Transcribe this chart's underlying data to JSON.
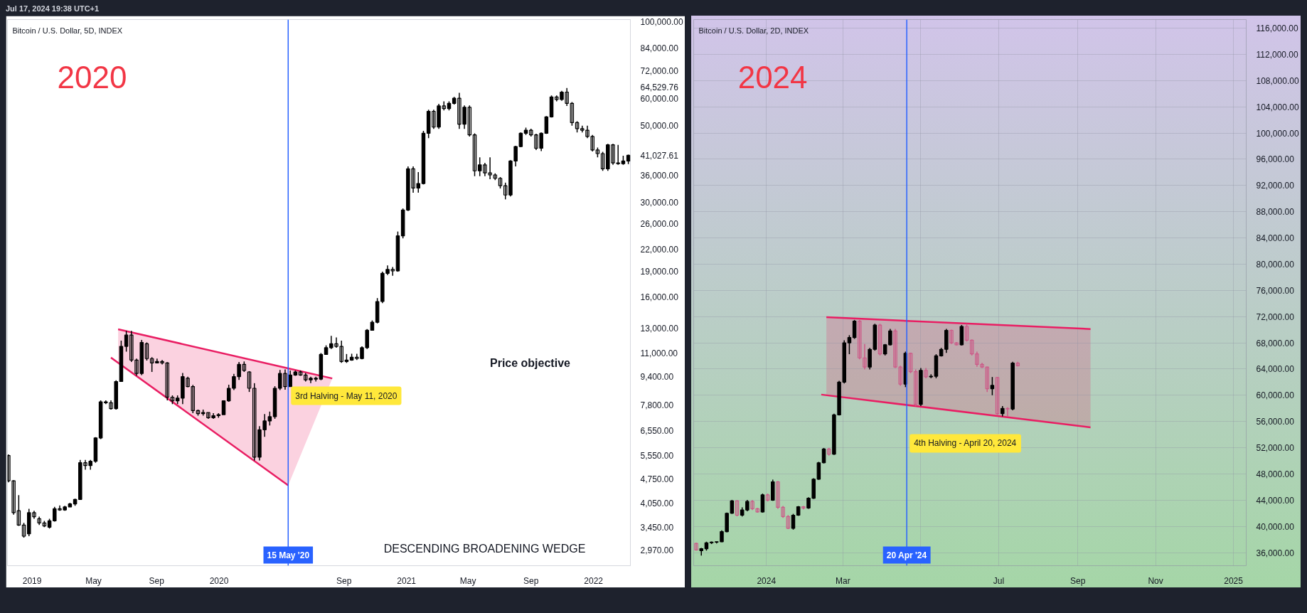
{
  "chart_data": [
    {
      "type": "candlestick",
      "title": "Bitcoin / U.S. Dollar, 5D, INDEX",
      "annotations": [
        "Jul 17, 2024 19:38 UTC+1",
        "2020",
        "Price objective",
        "DESCENDING BROADENING WEDGE",
        {
          "text": "3rd Halving - May 11, 2020",
          "x": "2020-05-15",
          "y": 8970
        }
      ],
      "log": true,
      "xlim": [
        "2018-11-14",
        "2022-03-14"
      ],
      "ylim": [
        2670,
        101300
      ],
      "xticks": [
        {
          "value": "2019-01-01",
          "label": "2019"
        },
        {
          "value": "2019-05-01",
          "label": "May"
        },
        {
          "value": "2019-09-01",
          "label": "Sep"
        },
        {
          "value": "2020-01-01",
          "label": "2020"
        },
        {
          "value": "2020-09-01",
          "label": "Sep"
        },
        {
          "value": "2021-01-01",
          "label": "2021"
        },
        {
          "value": "2021-05-01",
          "label": "May"
        },
        {
          "value": "2021-09-01",
          "label": "Sep"
        },
        {
          "value": "2022-01-01",
          "label": "2022"
        }
      ],
      "yticks": [
        {
          "value": 2970,
          "label": "2,970.00"
        },
        {
          "value": 3450,
          "label": "3,450.00"
        },
        {
          "value": 4050,
          "label": "4,050.00"
        },
        {
          "value": 4750,
          "label": "4,750.00"
        },
        {
          "value": 5550,
          "label": "5,550.00"
        },
        {
          "value": 6550,
          "label": "6,550.00"
        },
        {
          "value": 7800,
          "label": "7,800.00"
        },
        {
          "value": 9400,
          "label": "9,400.00"
        },
        {
          "value": 11000,
          "label": "11,000.00"
        },
        {
          "value": 13000,
          "label": "13,000.00"
        },
        {
          "value": 16000,
          "label": "16,000.00"
        },
        {
          "value": 19000,
          "label": "19,000.00"
        },
        {
          "value": 22000,
          "label": "22,000.00"
        },
        {
          "value": 26000,
          "label": "26,000.00"
        },
        {
          "value": 30000,
          "label": "30,000.00"
        },
        {
          "value": 36000,
          "label": "36,000.00"
        },
        {
          "value": 41027.61,
          "label": "41,027.61"
        },
        {
          "value": 50000,
          "label": "50,000.00"
        },
        {
          "value": 60000,
          "label": "60,000.00"
        },
        {
          "value": 64529.76,
          "label": "64,529.76"
        },
        {
          "value": 72000,
          "label": "72,000.00"
        },
        {
          "value": 84000,
          "label": "84,000.00"
        },
        {
          "value": 100000,
          "label": "100,000.00"
        }
      ],
      "ref_lines": [
        {
          "axis": "x",
          "value": "2020-05-15",
          "label": "15 May '20",
          "color": "#2962ff"
        }
      ],
      "series": [
        {
          "type": "line",
          "color": "#e91e63",
          "x": [
            "2019-06-04",
            "2020-05-15",
            null,
            "2019-06-18",
            "2020-05-15",
            "2020-08-09"
          ],
          "values": [
            10670,
            4560,
            null,
            12890,
            9935,
            9290
          ],
          "lower": [
            null,
            null,
            null,
            10290,
            4560,
            9290
          ],
          "upper": [
            null,
            null,
            null,
            12890,
            9935,
            9290
          ]
        }
      ],
      "color": "#000000",
      "x": [
        "2018-11-16",
        "2018-11-26",
        "2018-12-06",
        "2018-12-16",
        "2018-12-26",
        "2019-01-05",
        "2019-01-15",
        "2019-01-25",
        "2019-02-04",
        "2019-02-14",
        "2019-02-24",
        "2019-03-06",
        "2019-03-16",
        "2019-03-26",
        "2019-04-05",
        "2019-04-15",
        "2019-04-25",
        "2019-05-05",
        "2019-05-15",
        "2019-05-25",
        "2019-06-04",
        "2019-06-14",
        "2019-06-24",
        "2019-07-04",
        "2019-07-14",
        "2019-07-24",
        "2019-08-03",
        "2019-08-13",
        "2019-08-23",
        "2019-09-02",
        "2019-09-12",
        "2019-09-22",
        "2019-10-02",
        "2019-10-12",
        "2019-10-22",
        "2019-11-01",
        "2019-11-11",
        "2019-11-21",
        "2019-12-01",
        "2019-12-11",
        "2019-12-21",
        "2019-12-31",
        "2020-01-10",
        "2020-01-20",
        "2020-01-30",
        "2020-02-09",
        "2020-02-19",
        "2020-02-29",
        "2020-03-10",
        "2020-03-20",
        "2020-03-30",
        "2020-04-09",
        "2020-04-19",
        "2020-04-29",
        "2020-05-09",
        "2020-05-19",
        "2020-05-29",
        "2020-06-08",
        "2020-06-18",
        "2020-06-28",
        "2020-07-08",
        "2020-07-18",
        "2020-07-28",
        "2020-08-07",
        "2020-08-17",
        "2020-08-27",
        "2020-09-06",
        "2020-09-16",
        "2020-09-26",
        "2020-10-06",
        "2020-10-16",
        "2020-10-26",
        "2020-11-05",
        "2020-11-15",
        "2020-11-25",
        "2020-12-05",
        "2020-12-15",
        "2020-12-25",
        "2021-01-04",
        "2021-01-14",
        "2021-01-24",
        "2021-02-03",
        "2021-02-13",
        "2021-02-23",
        "2021-03-05",
        "2021-03-15",
        "2021-03-25",
        "2021-04-04",
        "2021-04-14",
        "2021-04-24",
        "2021-05-04",
        "2021-05-14",
        "2021-05-24",
        "2021-06-03",
        "2021-06-13",
        "2021-06-23",
        "2021-07-03",
        "2021-07-13",
        "2021-07-23",
        "2021-08-02",
        "2021-08-12",
        "2021-08-22",
        "2021-09-01",
        "2021-09-11",
        "2021-09-21",
        "2021-10-01",
        "2021-10-11",
        "2021-10-21",
        "2021-10-31",
        "2021-11-10",
        "2021-11-20",
        "2021-11-30",
        "2021-12-10",
        "2021-12-20",
        "2021-12-30",
        "2022-01-09",
        "2022-01-19",
        "2022-01-29",
        "2022-02-08",
        "2022-02-18",
        "2022-02-28",
        "2022-03-10"
      ],
      "ohlc": [
        [
          5560,
          5600,
          4650,
          4700
        ],
        [
          4700,
          4720,
          3750,
          3800
        ],
        [
          3850,
          4270,
          3480,
          3500
        ],
        [
          3500,
          3550,
          3220,
          3250
        ],
        [
          3300,
          3900,
          3250,
          3800
        ],
        [
          3800,
          3850,
          3650,
          3700
        ],
        [
          3650,
          3700,
          3500,
          3550
        ],
        [
          3550,
          3600,
          3450,
          3480
        ],
        [
          3450,
          3650,
          3420,
          3600
        ],
        [
          3600,
          3950,
          3580,
          3900
        ],
        [
          3900,
          3990,
          3850,
          3870
        ],
        [
          3870,
          3980,
          3850,
          3950
        ],
        [
          3950,
          4060,
          3950,
          4030
        ],
        [
          4030,
          4170,
          3980,
          4150
        ],
        [
          4150,
          5400,
          4150,
          5300
        ],
        [
          5300,
          5400,
          5060,
          5200
        ],
        [
          5200,
          5400,
          5060,
          5350
        ],
        [
          5350,
          6280,
          5300,
          6250
        ],
        [
          6250,
          8030,
          6200,
          7950
        ],
        [
          7950,
          8030,
          7830,
          7900
        ],
        [
          7900,
          8030,
          7550,
          7600
        ],
        [
          7600,
          9180,
          7550,
          9100
        ],
        [
          9100,
          11950,
          9100,
          11500
        ],
        [
          11500,
          12750,
          11100,
          12400
        ],
        [
          12400,
          12750,
          10360,
          10500
        ],
        [
          10500,
          10600,
          9460,
          9600
        ],
        [
          9600,
          12000,
          9500,
          11800
        ],
        [
          11700,
          11800,
          10460,
          10600
        ],
        [
          10600,
          10700,
          9700,
          10300
        ],
        [
          10300,
          10600,
          10300,
          10400
        ],
        [
          10400,
          10500,
          10200,
          10300
        ],
        [
          10300,
          10350,
          8030,
          8200
        ],
        [
          8200,
          8300,
          7830,
          8000
        ],
        [
          8000,
          8300,
          7830,
          8150
        ],
        [
          8150,
          9630,
          7830,
          9400
        ],
        [
          9300,
          9400,
          8760,
          8800
        ],
        [
          8800,
          8900,
          7370,
          7500
        ],
        [
          7500,
          7550,
          7250,
          7350
        ],
        [
          7350,
          7550,
          7250,
          7400
        ],
        [
          7400,
          7400,
          7100,
          7150
        ],
        [
          7150,
          7370,
          7100,
          7250
        ],
        [
          7250,
          7370,
          7150,
          7300
        ],
        [
          7300,
          8030,
          7300,
          8000
        ],
        [
          8000,
          8910,
          7950,
          8700
        ],
        [
          8700,
          9570,
          8600,
          9400
        ],
        [
          9400,
          10360,
          9200,
          10200
        ],
        [
          10200,
          10400,
          9700,
          9800
        ],
        [
          9700,
          9750,
          8490,
          8700
        ],
        [
          8700,
          9000,
          5380,
          5500
        ],
        [
          5500,
          6760,
          5380,
          6600
        ],
        [
          6600,
          7330,
          6300,
          7000
        ],
        [
          7000,
          7450,
          6790,
          7200
        ],
        [
          7200,
          8820,
          7100,
          8700
        ],
        [
          8700,
          9830,
          8600,
          9600
        ],
        [
          9600,
          9860,
          8620,
          8800
        ],
        [
          8800,
          9790,
          8800,
          9500
        ],
        [
          9500,
          9790,
          9450,
          9700
        ],
        [
          9700,
          9790,
          9450,
          9500
        ],
        [
          9500,
          9630,
          9100,
          9200
        ],
        [
          9200,
          9400,
          9000,
          9300
        ],
        [
          9300,
          9400,
          9100,
          9250
        ],
        [
          9250,
          11000,
          9180,
          10900
        ],
        [
          10900,
          11580,
          10900,
          11400
        ],
        [
          11400,
          12330,
          11300,
          11700
        ],
        [
          11700,
          12200,
          11400,
          11500
        ],
        [
          11500,
          11950,
          10300,
          10400
        ],
        [
          10400,
          10930,
          10300,
          10500
        ],
        [
          10500,
          10950,
          10450,
          10700
        ],
        [
          10700,
          10950,
          10500,
          10600
        ],
        [
          10600,
          11500,
          10550,
          11400
        ],
        [
          11400,
          12900,
          11300,
          12800
        ],
        [
          12800,
          13670,
          12800,
          13500
        ],
        [
          13500,
          15860,
          13400,
          15500
        ],
        [
          15500,
          18900,
          15330,
          18700
        ],
        [
          18700,
          19710,
          18500,
          19200
        ],
        [
          19200,
          19500,
          18400,
          19000
        ],
        [
          19000,
          24700,
          18900,
          24000
        ],
        [
          24000,
          28800,
          23600,
          28500
        ],
        [
          28500,
          38100,
          28300,
          37500
        ],
        [
          37500,
          38100,
          32000,
          33000
        ],
        [
          33000,
          36700,
          32000,
          34000
        ],
        [
          34000,
          48300,
          33800,
          47500
        ],
        [
          47500,
          55600,
          46000,
          55000
        ],
        [
          55000,
          55600,
          48900,
          49500
        ],
        [
          49500,
          57800,
          48900,
          57000
        ],
        [
          57000,
          58800,
          55300,
          56000
        ],
        [
          56000,
          58800,
          55300,
          58000
        ],
        [
          58000,
          60500,
          57500,
          60000
        ],
        [
          60000,
          62200,
          48900,
          50500
        ],
        [
          50500,
          57200,
          48900,
          56500
        ],
        [
          56500,
          57200,
          46500,
          47000
        ],
        [
          47000,
          47500,
          35700,
          37000
        ],
        [
          37000,
          40500,
          35700,
          38500
        ],
        [
          38500,
          39000,
          35700,
          36500
        ],
        [
          36500,
          40500,
          35000,
          36000
        ],
        [
          36000,
          36400,
          34800,
          35200
        ],
        [
          35200,
          35500,
          32900,
          33500
        ],
        [
          33500,
          34200,
          30600,
          31500
        ],
        [
          31500,
          39700,
          31200,
          39500
        ],
        [
          39500,
          43700,
          38100,
          43500
        ],
        [
          43500,
          47800,
          43300,
          47500
        ],
        [
          47500,
          49300,
          47000,
          48500
        ],
        [
          48500,
          49000,
          46500,
          47000
        ],
        [
          47000,
          47400,
          42500,
          43000
        ],
        [
          43000,
          47800,
          42200,
          47500
        ],
        [
          47500,
          53300,
          47300,
          53000
        ],
        [
          53000,
          61100,
          52800,
          60500
        ],
        [
          60500,
          61100,
          58800,
          59500
        ],
        [
          59500,
          63000,
          59000,
          62500
        ],
        [
          62500,
          64200,
          57000,
          58000
        ],
        [
          58000,
          58500,
          50000,
          51000
        ],
        [
          51000,
          51500,
          47800,
          49000
        ],
        [
          49000,
          50000,
          47800,
          48500
        ],
        [
          48500,
          50000,
          46000,
          46500
        ],
        [
          46500,
          47000,
          42100,
          42500
        ],
        [
          42500,
          43200,
          40500,
          41500
        ],
        [
          41500,
          42000,
          37000,
          37500
        ],
        [
          37500,
          44300,
          37000,
          44000
        ],
        [
          44000,
          44300,
          38500,
          39000
        ],
        [
          39000,
          44000,
          38500,
          38800
        ],
        [
          38800,
          40900,
          38500,
          39500
        ],
        [
          39500,
          41200,
          38700,
          41027.61
        ]
      ]
    },
    {
      "type": "candlestick",
      "title": "Bitcoin / U.S. Dollar, 2D, INDEX",
      "annotations": [
        "2024",
        {
          "text": "4th Halving - April 20, 2024",
          "x": "2024-04-20",
          "y": 54500
        }
      ],
      "grid": true,
      "xlim": [
        "2023-11-05",
        "2025-01-11"
      ],
      "ylim": [
        34000,
        117300
      ],
      "xticks": [
        {
          "value": "2024-01-01",
          "label": "2024"
        },
        {
          "value": "2024-03-01",
          "label": "Mar"
        },
        {
          "value": "2024-05-01",
          "label": null
        },
        {
          "value": "2024-07-01",
          "label": "Jul"
        },
        {
          "value": "2024-09-01",
          "label": "Sep"
        },
        {
          "value": "2024-11-01",
          "label": "Nov"
        },
        {
          "value": "2025-01-01",
          "label": "2025"
        }
      ],
      "yticks": [
        {
          "value": 36000,
          "label": "36,000.00"
        },
        {
          "value": 40000,
          "label": "40,000.00"
        },
        {
          "value": 44000,
          "label": "44,000.00"
        },
        {
          "value": 48000,
          "label": "48,000.00"
        },
        {
          "value": 52000,
          "label": "52,000.00"
        },
        {
          "value": 56000,
          "label": "56,000.00"
        },
        {
          "value": 60000,
          "label": "60,000.00"
        },
        {
          "value": 64000,
          "label": "64,000.00"
        },
        {
          "value": 68000,
          "label": "68,000.00"
        },
        {
          "value": 72000,
          "label": "72,000.00"
        },
        {
          "value": 76000,
          "label": "76,000.00"
        },
        {
          "value": 80000,
          "label": "80,000.00"
        },
        {
          "value": 84000,
          "label": "84,000.00"
        },
        {
          "value": 88000,
          "label": "88,000.00"
        },
        {
          "value": 92000,
          "label": "92,000.00"
        },
        {
          "value": 96000,
          "label": "96,000.00"
        },
        {
          "value": 100000,
          "label": "100,000.00"
        },
        {
          "value": 104000,
          "label": "104,000.00"
        },
        {
          "value": 108000,
          "label": "108,000.00"
        },
        {
          "value": 112000,
          "label": "112,000.00"
        },
        {
          "value": 116000,
          "label": "116,000.00"
        }
      ],
      "ref_lines": [
        {
          "axis": "x",
          "value": "2024-04-20",
          "label": "20 Apr '24",
          "color": "#2962ff"
        }
      ],
      "series": [
        {
          "type": "line",
          "color": "#e91e63",
          "x": [
            "2024-02-13",
            "2024-09-11",
            null,
            "2024-02-17",
            "2024-09-11"
          ],
          "values": [
            60100,
            55100,
            null,
            71900,
            70100
          ],
          "lower": [
            null,
            null,
            null,
            60000,
            55100
          ],
          "upper": [
            null,
            null,
            null,
            71900,
            70100
          ]
        }
      ],
      "x": [
        "2023-11-07",
        "2023-11-11",
        "2023-11-15",
        "2023-11-19",
        "2023-11-23",
        "2023-11-27",
        "2023-12-01",
        "2023-12-05",
        "2023-12-09",
        "2023-12-13",
        "2023-12-17",
        "2023-12-21",
        "2023-12-25",
        "2023-12-29",
        "2024-01-02",
        "2024-01-06",
        "2024-01-10",
        "2024-01-14",
        "2024-01-18",
        "2024-01-22",
        "2024-01-26",
        "2024-01-30",
        "2024-02-03",
        "2024-02-07",
        "2024-02-11",
        "2024-02-15",
        "2024-02-19",
        "2024-02-23",
        "2024-02-27",
        "2024-03-02",
        "2024-03-06",
        "2024-03-10",
        "2024-03-14",
        "2024-03-18",
        "2024-03-22",
        "2024-03-26",
        "2024-03-30",
        "2024-04-03",
        "2024-04-07",
        "2024-04-11",
        "2024-04-15",
        "2024-04-19",
        "2024-04-23",
        "2024-04-27",
        "2024-05-01",
        "2024-05-05",
        "2024-05-09",
        "2024-05-13",
        "2024-05-17",
        "2024-05-21",
        "2024-05-25",
        "2024-05-29",
        "2024-06-02",
        "2024-06-06",
        "2024-06-10",
        "2024-06-14",
        "2024-06-18",
        "2024-06-22",
        "2024-06-26",
        "2024-06-30",
        "2024-07-04",
        "2024-07-08",
        "2024-07-12",
        "2024-07-16"
      ],
      "ohlc": [
        [
          37400,
          37500,
          36300,
          36400
        ],
        [
          36300,
          36700,
          35540,
          36600
        ],
        [
          36600,
          37660,
          36300,
          37500
        ],
        [
          37500,
          37700,
          37300,
          37600
        ],
        [
          37600,
          37700,
          37400,
          37650
        ],
        [
          37650,
          39400,
          37600,
          39200
        ],
        [
          39200,
          42100,
          39100,
          42000
        ],
        [
          42000,
          44040,
          41900,
          43900
        ],
        [
          43900,
          44000,
          41530,
          41700
        ],
        [
          41700,
          42900,
          41500,
          42500
        ],
        [
          42500,
          44040,
          42300,
          43800
        ],
        [
          43800,
          44000,
          42500,
          42700
        ],
        [
          42700,
          42800,
          42100,
          42200
        ],
        [
          42200,
          45000,
          42100,
          44800
        ],
        [
          44800,
          45000,
          43800,
          44000
        ],
        [
          44000,
          47130,
          43900,
          46800
        ],
        [
          46800,
          46900,
          42690,
          42900
        ],
        [
          42900,
          43100,
          41300,
          41500
        ],
        [
          41500,
          41720,
          39590,
          39700
        ],
        [
          39700,
          41910,
          39500,
          41700
        ],
        [
          41700,
          43100,
          41600,
          43000
        ],
        [
          43000,
          43100,
          42600,
          42800
        ],
        [
          42800,
          44430,
          42690,
          44300
        ],
        [
          44300,
          47330,
          44200,
          47200
        ],
        [
          47200,
          49840,
          47100,
          49700
        ],
        [
          49700,
          51960,
          49600,
          51800
        ],
        [
          51800,
          51960,
          50800,
          51000
        ],
        [
          51000,
          57180,
          50900,
          57000
        ],
        [
          57000,
          62200,
          56900,
          62000
        ],
        [
          62000,
          68390,
          61800,
          68000
        ],
        [
          68000,
          69160,
          66260,
          68800
        ],
        [
          68800,
          71480,
          68600,
          71300
        ],
        [
          71300,
          71480,
          65490,
          65700
        ],
        [
          65700,
          67810,
          63940,
          64300
        ],
        [
          64300,
          67230,
          63940,
          67000
        ],
        [
          67000,
          70900,
          66800,
          70700
        ],
        [
          70700,
          70900,
          66070,
          66300
        ],
        [
          66300,
          67810,
          66070,
          67700
        ],
        [
          67700,
          70130,
          67600,
          69800
        ],
        [
          69800,
          70130,
          64140,
          64300
        ],
        [
          64300,
          64500,
          61430,
          61700
        ],
        [
          61700,
          66650,
          61240,
          66400
        ],
        [
          66400,
          66500,
          63370,
          63600
        ],
        [
          63600,
          63940,
          58340,
          58600
        ],
        [
          58600,
          64140,
          58340,
          63800
        ],
        [
          63800,
          64140,
          62590,
          62800
        ],
        [
          62800,
          63200,
          62600,
          62900
        ],
        [
          62900,
          66260,
          62590,
          66000
        ],
        [
          66000,
          67230,
          65900,
          67000
        ],
        [
          67000,
          70130,
          66460,
          69900
        ],
        [
          69900,
          70000,
          67810,
          68000
        ],
        [
          68000,
          68100,
          67600,
          67700
        ],
        [
          67700,
          70710,
          67600,
          70500
        ],
        [
          70500,
          70900,
          68200,
          68400
        ],
        [
          68400,
          68500,
          66070,
          66300
        ],
        [
          66300,
          66650,
          64330,
          64700
        ],
        [
          64700,
          64950,
          64140,
          64300
        ],
        [
          64300,
          64330,
          60500,
          61000
        ],
        [
          61000,
          62780,
          60000,
          61500
        ],
        [
          62700,
          62780,
          56990,
          57200
        ],
        [
          57200,
          58340,
          56790,
          58000
        ],
        [
          58000,
          58150,
          56790,
          57900
        ],
        [
          57900,
          65100,
          57700,
          64900
        ],
        [
          64900,
          65100,
          64400,
          64500
        ]
      ],
      "colors": [
        "#cc5a88",
        "#000000",
        "#000000",
        "#000000",
        "#000000",
        "#000000",
        "#000000",
        "#000000",
        "#cc5a88",
        "#000000",
        "#000000",
        "#cc5a88",
        "#cc5a88",
        "#000000",
        "#cc5a88",
        "#000000",
        "#cc5a88",
        "#cc5a88",
        "#cc5a88",
        "#000000",
        "#000000",
        "#cc5a88",
        "#000000",
        "#000000",
        "#000000",
        "#000000",
        "#cc5a88",
        "#000000",
        "#000000",
        "#000000",
        "#000000",
        "#000000",
        "#cc5a88",
        "#cc5a88",
        "#000000",
        "#000000",
        "#cc5a88",
        "#000000",
        "#000000",
        "#cc5a88",
        "#cc5a88",
        "#000000",
        "#cc5a88",
        "#cc5a88",
        "#000000",
        "#cc5a88",
        "#000000",
        "#000000",
        "#000000",
        "#000000",
        "#cc5a88",
        "#cc5a88",
        "#000000",
        "#cc5a88",
        "#cc5a88",
        "#cc5a88",
        "#cc5a88",
        "#cc5a88",
        "#000000",
        "#cc5a88",
        "#000000",
        "#cc5a88",
        "#000000",
        "#cc5a88"
      ]
    }
  ]
}
